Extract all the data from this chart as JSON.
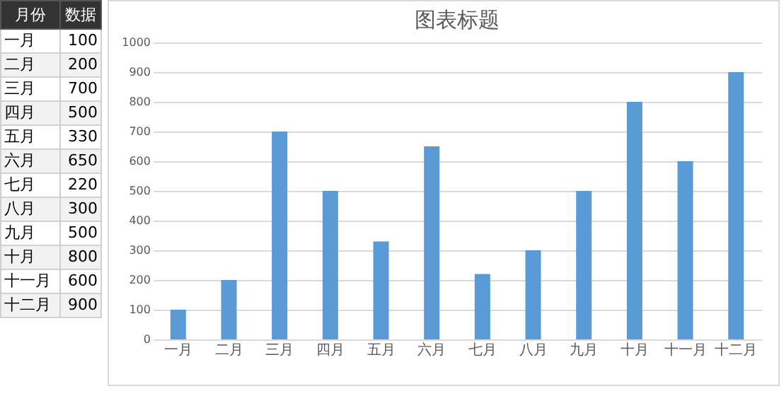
{
  "chart_data": [
    {
      "type": "other",
      "annotations": [
        "月份",
        "数据",
        "一月",
        "100",
        "二月",
        "200",
        "三月",
        "700",
        "四月",
        "500",
        "五月",
        "330",
        "六月",
        "650",
        "七月",
        "220",
        "八月",
        "300",
        "九月",
        "500",
        "十月",
        "800",
        "十一月",
        "600",
        "十二月",
        "900"
      ]
    },
    {
      "type": "bar",
      "title": "图表标题",
      "categories": [
        "一月",
        "二月",
        "三月",
        "四月",
        "五月",
        "六月",
        "七月",
        "八月",
        "九月",
        "十月",
        "十一月",
        "十二月"
      ],
      "values": [
        100,
        200,
        700,
        500,
        330,
        650,
        220,
        300,
        500,
        800,
        600,
        900
      ],
      "color": "#5b9bd5",
      "ylim": [
        0,
        1000
      ],
      "yticks": [
        0,
        100,
        200,
        300,
        400,
        500,
        600,
        700,
        800,
        900,
        {
          "value": 1000,
          "label": "1000"
        }
      ],
      "grid": "y"
    }
  ]
}
